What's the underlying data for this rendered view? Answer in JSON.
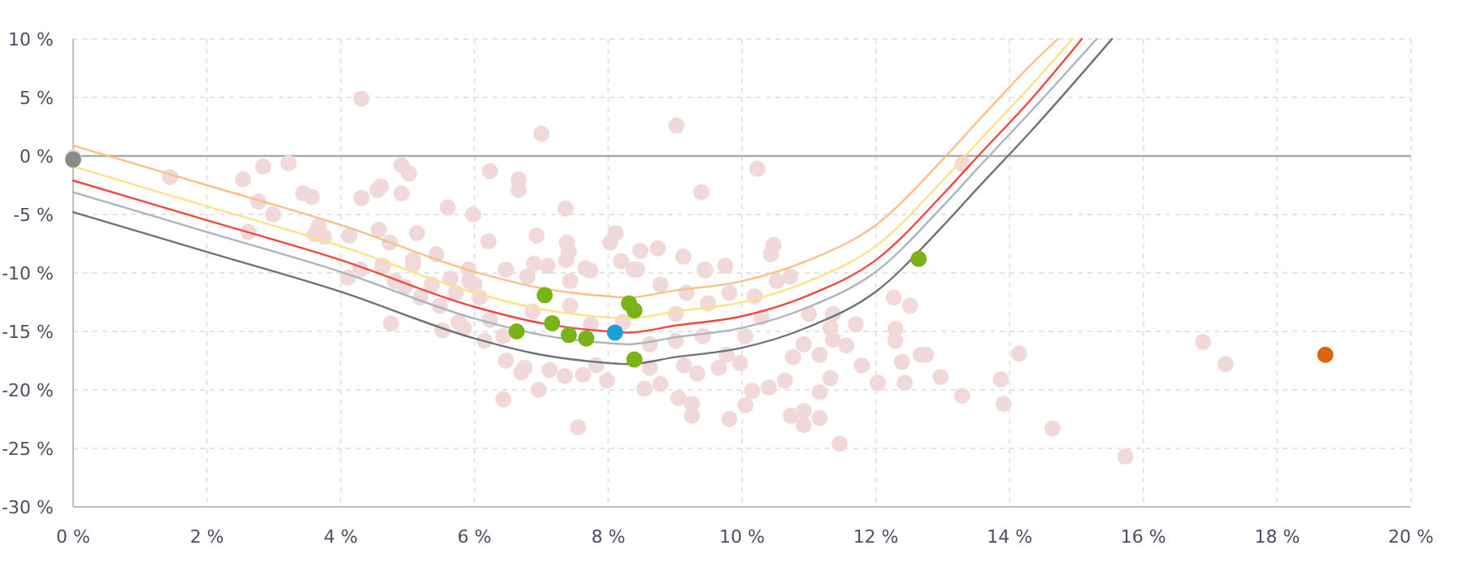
{
  "chart_data": {
    "type": "scatter",
    "xlim": [
      0,
      20
    ],
    "ylim": [
      -30,
      10
    ],
    "xticks": [
      {
        "value": 0,
        "label": "0 %"
      },
      {
        "value": 2,
        "label": "2 %"
      },
      {
        "value": 4,
        "label": "4 %"
      },
      {
        "value": 6,
        "label": "6 %"
      },
      {
        "value": 8,
        "label": "8 %"
      },
      {
        "value": 10,
        "label": "10 %"
      },
      {
        "value": 12,
        "label": "12 %"
      },
      {
        "value": 14,
        "label": "14 %"
      },
      {
        "value": 16,
        "label": "16 %"
      },
      {
        "value": 18,
        "label": "18 %"
      },
      {
        "value": 20,
        "label": "20 %"
      }
    ],
    "yticks": [
      {
        "value": -30,
        "label": "-30 %"
      },
      {
        "value": -25,
        "label": "-25 %"
      },
      {
        "value": -20,
        "label": "-20 %"
      },
      {
        "value": -15,
        "label": "-15 %"
      },
      {
        "value": -10,
        "label": "-10 %"
      },
      {
        "value": -5,
        "label": "-5 %"
      },
      {
        "value": 0,
        "label": "0 %"
      },
      {
        "value": 5,
        "label": "5 %"
      },
      {
        "value": 10,
        "label": "10 %"
      }
    ],
    "grid": true,
    "marker": "circle",
    "ref_lines": [
      {
        "axis": "y",
        "value": 0,
        "color": "#aaaaaa"
      }
    ],
    "series": [
      {
        "color": "#f2d9d9",
        "x": [
          4.31,
          1.45,
          2.54,
          2.84,
          3.22,
          2.77,
          2.99,
          2.62,
          3.44,
          3.57,
          3.67,
          3.61,
          3.75,
          4.13,
          4.31,
          4.55,
          4.6,
          4.91,
          5.02,
          4.91,
          4.57,
          4.73,
          5.14,
          5.6,
          5.98,
          5.43,
          5.08,
          4.63,
          5.91,
          4.11,
          4.29,
          4.62,
          4.75,
          4.81,
          4.96,
          5.08,
          5.19,
          5.36,
          5.48,
          5.52,
          5.64,
          5.72,
          5.84,
          6.0,
          5.76,
          7.0,
          9.02,
          10.23,
          6.23,
          6.66,
          6.66,
          7.36,
          9.39,
          6.21,
          6.93,
          7.38,
          7.41,
          7.37,
          8.03,
          8.11,
          8.48,
          8.74,
          9.12,
          8.19,
          6.47,
          6.89,
          7.09,
          7.73,
          8.43,
          9.44,
          9.75,
          10.47,
          10.43,
          6.43,
          6.96,
          7.55,
          9.81,
          9.25,
          10.05,
          10.15,
          10.73,
          10.92,
          11.16,
          10.92,
          11.46,
          11.16,
          11.32,
          12.03,
          12.43,
          12.67,
          12.39,
          12.29,
          12.29,
          12.27,
          12.51,
          11.7,
          11.79,
          11.56,
          11.36,
          11.32,
          11.16,
          10.92,
          10.76,
          10.64,
          10.4,
          9.97,
          9.65,
          9.33,
          9.05,
          9.25,
          8.78,
          8.54,
          7.98,
          7.35,
          7.12,
          6.7,
          6.75,
          6.47,
          7.62,
          10.72,
          10.52,
          10.19,
          11.0,
          11.36,
          9.45,
          8.78,
          8.38,
          7.66,
          10.29,
          10.05,
          9.77,
          9.13,
          8.62,
          7.82,
          5.92,
          6.08,
          6.23,
          6.15,
          6.43,
          6.87,
          7.43,
          7.74,
          8.22,
          8.62,
          9.01,
          9.41,
          9.01,
          9.49,
          9.17,
          9.81,
          7.43,
          6.79,
          12.75,
          12.97,
          13.29,
          13.87,
          13.91,
          14.14,
          14.64,
          15.73,
          16.89,
          17.23,
          13.3,
          0.0
        ],
        "values": [
          4.9,
          -1.8,
          -2.0,
          -0.9,
          -0.6,
          -3.9,
          -5.0,
          -6.5,
          -3.2,
          -3.5,
          -6.0,
          -6.7,
          -6.9,
          -6.8,
          -3.6,
          -2.9,
          -2.6,
          -0.8,
          -1.5,
          -3.2,
          -6.3,
          -7.4,
          -6.6,
          -4.4,
          -5.0,
          -8.4,
          -8.9,
          -9.4,
          -9.7,
          -10.4,
          -9.7,
          -9.4,
          -14.3,
          -10.7,
          -11.2,
          -9.3,
          -12.1,
          -11.0,
          -12.8,
          -14.9,
          -10.5,
          -11.7,
          -14.7,
          -11.0,
          -14.2,
          1.9,
          2.6,
          -1.1,
          -1.3,
          -2.0,
          -2.9,
          -4.5,
          -3.1,
          -7.3,
          -6.8,
          -7.4,
          -8.2,
          -8.9,
          -7.4,
          -6.6,
          -8.1,
          -7.9,
          -8.6,
          -9.0,
          -9.7,
          -9.2,
          -9.4,
          -9.8,
          -9.7,
          -9.7,
          -9.4,
          -7.6,
          -8.4,
          -20.8,
          -20.0,
          -23.2,
          -22.5,
          -22.2,
          -21.3,
          -20.1,
          -22.2,
          -23.0,
          -22.4,
          -21.8,
          -24.6,
          -20.2,
          -19.0,
          -19.4,
          -19.4,
          -17.0,
          -17.6,
          -14.8,
          -15.8,
          -12.1,
          -12.8,
          -14.4,
          -17.9,
          -16.2,
          -15.7,
          -14.7,
          -17.0,
          -16.1,
          -17.2,
          -19.2,
          -19.8,
          -17.7,
          -18.1,
          -18.6,
          -20.7,
          -21.2,
          -19.5,
          -19.9,
          -19.2,
          -18.8,
          -18.3,
          -18.5,
          -18.1,
          -17.5,
          -18.7,
          -10.3,
          -10.7,
          -12.0,
          -13.5,
          -13.5,
          -9.8,
          -11.0,
          -9.7,
          -9.6,
          -13.8,
          -15.4,
          -17.0,
          -17.9,
          -18.1,
          -17.9,
          -10.7,
          -12.1,
          -14.0,
          -15.8,
          -15.4,
          -13.3,
          -12.8,
          -14.4,
          -14.2,
          -16.1,
          -15.8,
          -15.4,
          -13.5,
          -12.6,
          -11.7,
          -11.7,
          -10.7,
          -10.3,
          -17.0,
          -18.9,
          -20.5,
          -19.1,
          -21.2,
          -16.9,
          -23.3,
          -25.7,
          -15.9,
          -17.8,
          -0.7,
          -0.1
        ]
      },
      {
        "type": "line",
        "marker": "none",
        "color": "#f9c088",
        "x": [
          0,
          2,
          4,
          6,
          7,
          8,
          8.3,
          9,
          10,
          11,
          12,
          13,
          13.53,
          14.3,
          14.72
        ],
        "values": [
          0.9,
          -2.5,
          -5.9,
          -9.9,
          -11.3,
          -12,
          -12.1,
          -11.5,
          -10.7,
          -8.9,
          -5.9,
          -0.3,
          3,
          7.7,
          10
        ]
      },
      {
        "type": "line",
        "marker": "none",
        "color": "#fde28a",
        "x": [
          0,
          2,
          4,
          6,
          7,
          8,
          8.3,
          9,
          10,
          11,
          12,
          13,
          13.53,
          14.3,
          14.94
        ],
        "values": [
          -0.9,
          -4.3,
          -7.7,
          -11.7,
          -13.1,
          -13.8,
          -13.9,
          -13.3,
          -12.5,
          -10.7,
          -7.7,
          -2.1,
          1.2,
          5.9,
          10
        ]
      },
      {
        "type": "line",
        "marker": "none",
        "color": "#a9b4bb",
        "x": [
          0,
          2,
          4,
          6,
          7,
          8,
          8.3,
          9,
          10,
          11,
          12,
          13,
          13.53,
          14.3,
          15.3
        ],
        "values": [
          -3.1,
          -6.5,
          -9.9,
          -13.9,
          -15.3,
          -16,
          -16.1,
          -15.5,
          -14.7,
          -12.9,
          -9.9,
          -4.3,
          -1,
          3.7,
          10
        ]
      },
      {
        "type": "line",
        "marker": "none",
        "color": "#6d7378",
        "x": [
          0,
          2,
          4,
          6,
          7,
          8,
          8.3,
          9,
          10,
          11,
          12,
          13,
          13.53,
          14.3,
          15.53
        ],
        "values": [
          -4.8,
          -8.2,
          -11.6,
          -15.6,
          -17,
          -17.7,
          -17.8,
          -17.2,
          -16.4,
          -14.6,
          -11.6,
          -6,
          -2.7,
          2,
          10
        ]
      },
      {
        "type": "line",
        "marker": "none",
        "color": "#f0483e",
        "x": [
          0,
          2,
          4,
          6,
          7,
          8,
          8.3,
          9,
          10,
          11,
          12,
          13,
          13.53,
          14.3,
          15.08
        ],
        "values": [
          -2.1,
          -5.5,
          -8.9,
          -12.9,
          -14.3,
          -15,
          -15.1,
          -14.5,
          -13.7,
          -11.9,
          -8.9,
          -3.3,
          0,
          4.7,
          10
        ]
      },
      {
        "color": "#7ab317",
        "x": [
          12.64,
          7.05,
          6.63,
          7.16,
          7.41,
          7.67,
          8.31,
          8.39,
          8.39
        ],
        "values": [
          -8.8,
          -11.9,
          -15.0,
          -14.3,
          -15.3,
          -15.6,
          -12.6,
          -13.2,
          -17.4
        ]
      },
      {
        "color": "#1a9fd9",
        "x": [
          8.1
        ],
        "values": [
          -15.1
        ]
      },
      {
        "color": "#8a8a8a",
        "x": [
          0.0
        ],
        "values": [
          -0.3
        ]
      },
      {
        "color": "#d9650f",
        "x": [
          18.72
        ],
        "values": [
          -17.0
        ]
      }
    ]
  }
}
